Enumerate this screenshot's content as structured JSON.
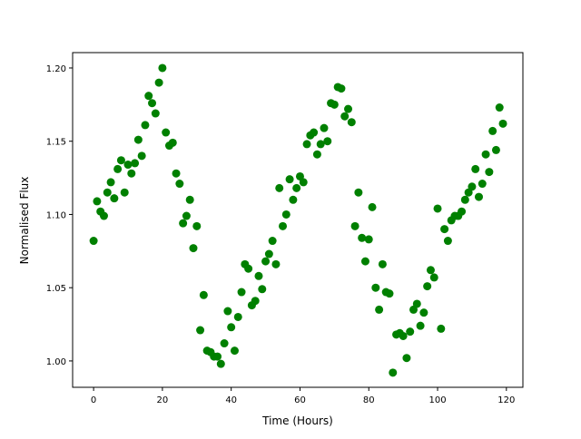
{
  "chart_data": {
    "type": "scatter",
    "title": "",
    "xlabel": "Time (Hours)",
    "ylabel": "Normalised Flux",
    "xlim": [
      -6.1,
      124.8
    ],
    "ylim": [
      0.982,
      1.2105
    ],
    "xticks": [
      0,
      20,
      40,
      60,
      80,
      100,
      120
    ],
    "xtick_labels": [
      "0",
      "20",
      "40",
      "60",
      "80",
      "100",
      "120"
    ],
    "yticks": [
      1.0,
      1.05,
      1.1,
      1.15,
      1.2
    ],
    "ytick_labels": [
      "1.00",
      "1.05",
      "1.10",
      "1.15",
      "1.20"
    ],
    "grid": false,
    "marker_color": "#008000",
    "x": [
      0,
      1,
      2,
      3,
      4,
      5,
      6,
      7,
      8,
      9,
      10,
      11,
      12,
      13,
      14,
      15,
      16,
      17,
      18,
      19,
      20,
      21,
      22,
      23,
      24,
      25,
      26,
      27,
      28,
      29,
      30,
      31,
      32,
      33,
      34,
      35,
      36,
      37,
      38,
      39,
      40,
      41,
      42,
      43,
      44,
      45,
      46,
      47,
      48,
      49,
      50,
      51,
      52,
      53,
      54,
      55,
      56,
      57,
      58,
      59,
      60,
      61,
      62,
      63,
      64,
      65,
      66,
      67,
      68,
      69,
      70,
      71,
      72,
      73,
      74,
      75,
      76,
      77,
      78,
      79,
      80,
      81,
      82,
      83,
      84,
      85,
      86,
      87,
      88,
      89,
      90,
      91,
      92,
      93,
      94,
      95,
      96,
      97,
      98,
      99,
      100,
      101,
      102,
      103,
      104,
      105,
      106,
      107,
      108,
      109,
      110,
      111,
      112,
      113,
      114,
      115,
      116,
      117,
      118,
      119
    ],
    "y": [
      1.082,
      1.109,
      1.102,
      1.099,
      1.115,
      1.122,
      1.111,
      1.131,
      1.137,
      1.115,
      1.134,
      1.128,
      1.135,
      1.151,
      1.14,
      1.161,
      1.181,
      1.176,
      1.169,
      1.19,
      1.2,
      1.156,
      1.147,
      1.149,
      1.128,
      1.121,
      1.094,
      1.099,
      1.11,
      1.077,
      1.092,
      1.021,
      1.045,
      1.007,
      1.006,
      1.003,
      1.003,
      0.998,
      1.012,
      1.034,
      1.023,
      1.007,
      1.03,
      1.047,
      1.066,
      1.063,
      1.038,
      1.041,
      1.058,
      1.049,
      1.068,
      1.073,
      1.082,
      1.066,
      1.118,
      1.092,
      1.1,
      1.124,
      1.11,
      1.118,
      1.126,
      1.122,
      1.148,
      1.154,
      1.156,
      1.141,
      1.148,
      1.159,
      1.15,
      1.176,
      1.175,
      1.187,
      1.186,
      1.167,
      1.172,
      1.163,
      1.092,
      1.115,
      1.084,
      1.068,
      1.083,
      1.105,
      1.05,
      1.035,
      1.066,
      1.047,
      1.046,
      0.992,
      1.018,
      1.019,
      1.017,
      1.002,
      1.02,
      1.035,
      1.039,
      1.024,
      1.033,
      1.051,
      1.062,
      1.057,
      1.104,
      1.022,
      1.09,
      1.082,
      1.096,
      1.099,
      1.099,
      1.102,
      1.11,
      1.115,
      1.119,
      1.131,
      1.112,
      1.121,
      1.141,
      1.129,
      1.157,
      1.144,
      1.173,
      1.162
    ]
  }
}
